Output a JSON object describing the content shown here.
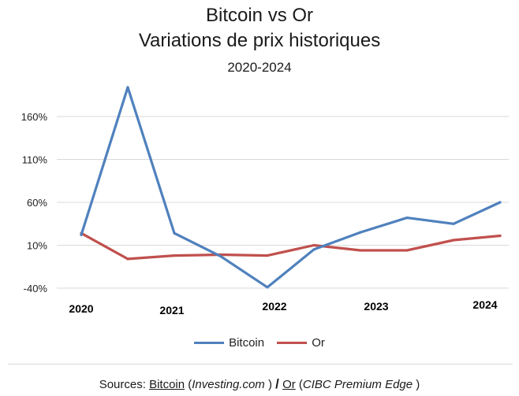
{
  "chart_data": {
    "type": "line",
    "title": "Bitcoin vs Or",
    "subtitle": "Variations de prix historiques",
    "period": "2020-2024",
    "y_ticks": [
      "160%",
      "110%",
      "60%",
      "10%",
      "-40%"
    ],
    "y_tick_values": [
      160,
      110,
      60,
      10,
      -40
    ],
    "ylim": [
      -40,
      190
    ],
    "x_ticks": [
      "2020",
      "2021",
      "2022",
      "2023",
      "2024"
    ],
    "x": [
      2020.0,
      2020.5,
      2021.0,
      2021.5,
      2022.0,
      2022.5,
      2023.0,
      2023.5,
      2024.0,
      2024.5
    ],
    "series": [
      {
        "name": "Bitcoin",
        "color": "#4f81bd",
        "values": [
          22,
          194,
          24,
          -3,
          -39,
          5,
          25,
          42,
          35,
          60
        ]
      },
      {
        "name": "Or",
        "color": "#c0504d",
        "values": [
          24,
          -6,
          -2,
          -1,
          -2,
          10,
          4,
          4,
          16,
          21
        ]
      }
    ],
    "grid": "horizontal",
    "legend_position": "bottom"
  },
  "source": {
    "prefix": "Sources: ",
    "bitcoin": "Bitcoin",
    "bitcoin_site": "Investing.com ",
    "slash": "/",
    "or": "Or",
    "or_site": "CIBC Premium Edge "
  }
}
